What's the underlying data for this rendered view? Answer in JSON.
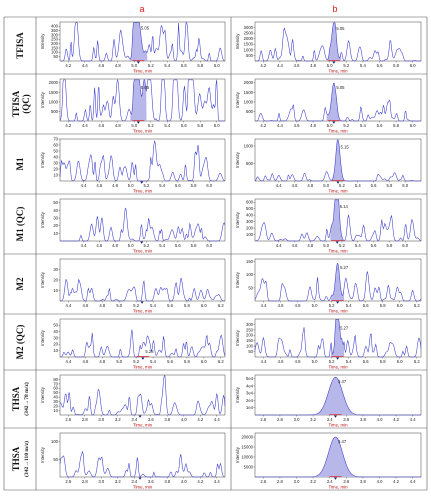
{
  "columns": [
    "a",
    "b"
  ],
  "rows": [
    {
      "name": "TFISA",
      "sub": ""
    },
    {
      "name": "TFISA",
      "sub": "(QC)"
    },
    {
      "name": "M1",
      "sub": ""
    },
    {
      "name": "M1 (QC)",
      "sub": ""
    },
    {
      "name": "M2",
      "sub": ""
    },
    {
      "name": "M2 (QC)",
      "sub": ""
    },
    {
      "name": "THSA",
      "sub": "(342→78 m/z)"
    },
    {
      "name": "THSA",
      "sub": "(342→110 m/z)"
    }
  ],
  "axis_label_y": "Intensity",
  "axis_label_x": "Time, min",
  "colors": {
    "trace": "#3a3acc",
    "fill": "#b7b7ea",
    "header": "#e01818",
    "baseline": "#e02020"
  },
  "chart_data": [
    {
      "row": 0,
      "col": "a",
      "type": "line",
      "xlim": [
        4.1,
        6.1
      ],
      "xticks": [
        "4.2",
        "4.4",
        "4.6",
        "4.8",
        "5.0",
        "5.2",
        "5.4",
        "5.6",
        "5.8",
        "6.0"
      ],
      "ylim": [
        0,
        450
      ],
      "yticks": [
        "50",
        "100",
        "150",
        "200",
        "250",
        "300",
        "350",
        "400"
      ],
      "peak_label": "5.05",
      "peak_x": 5.05,
      "peak_height": 430,
      "peak_width": 0.05,
      "noise": 70,
      "seed": 11
    },
    {
      "row": 0,
      "col": "b",
      "type": "line",
      "xlim": [
        4.1,
        6.1
      ],
      "xticks": [
        "4.2",
        "4.4",
        "4.6",
        "4.8",
        "5.0",
        "5.2",
        "5.4",
        "5.6",
        "5.8",
        "6.0"
      ],
      "ylim": [
        0,
        3500
      ],
      "yticks": [
        "500",
        "1000",
        "1500",
        "2000",
        "2500",
        "3000"
      ],
      "peak_label": "5.05",
      "peak_x": 5.05,
      "peak_height": 3300,
      "peak_width": 0.04,
      "noise": 35,
      "seed": 12
    },
    {
      "row": 1,
      "col": "a",
      "type": "line",
      "xlim": [
        4.1,
        6.1
      ],
      "xticks": [
        "4.2",
        "4.4",
        "4.6",
        "4.8",
        "5.0",
        "5.2",
        "5.4",
        "5.6",
        "5.8",
        "6.0"
      ],
      "ylim": [
        0,
        2200
      ],
      "yticks": [
        "500",
        "1000",
        "1500",
        "2000"
      ],
      "peak_label": "5.05",
      "peak_x": 5.05,
      "peak_height": 2000,
      "peak_width": 0.045,
      "noise": 130,
      "seed": 21
    },
    {
      "row": 1,
      "col": "b",
      "type": "line",
      "xlim": [
        4.1,
        6.1
      ],
      "xticks": [
        "4.2",
        "4.4",
        "4.6",
        "4.8",
        "5.0",
        "5.2",
        "5.4",
        "5.6",
        "5.8",
        "6.0"
      ],
      "ylim": [
        0,
        2200
      ],
      "yticks": [
        "500",
        "1000",
        "1500",
        "2000"
      ],
      "peak_label": "5.05",
      "peak_x": 5.05,
      "peak_height": 2000,
      "peak_width": 0.04,
      "noise": 25,
      "seed": 22
    },
    {
      "row": 2,
      "col": "a",
      "type": "line",
      "xlim": [
        4.1,
        6.2
      ],
      "xticks": [
        "4.4",
        "4.6",
        "4.8",
        "5.0",
        "5.2",
        "5.4",
        "5.6",
        "5.8",
        "6.0"
      ],
      "ylim": [
        0,
        70
      ],
      "yticks": [
        "10",
        "20",
        "30",
        "40",
        "50",
        "60",
        "70"
      ],
      "peak_label": "",
      "peak_x": 5.14,
      "peak_height": 0,
      "peak_width": 0.04,
      "noise": 55,
      "seed": 31
    },
    {
      "row": 2,
      "col": "b",
      "type": "line",
      "xlim": [
        4.1,
        6.2
      ],
      "xticks": [
        "4.4",
        "4.6",
        "4.8",
        "5.0",
        "5.2",
        "5.4",
        "5.6",
        "5.8",
        "6.0"
      ],
      "ylim": [
        0,
        1200
      ],
      "yticks": [
        "500",
        "1000"
      ],
      "peak_label": "5.15",
      "peak_x": 5.15,
      "peak_height": 1100,
      "peak_width": 0.04,
      "noise": 20,
      "seed": 32
    },
    {
      "row": 3,
      "col": "a",
      "type": "line",
      "xlim": [
        4.1,
        6.2
      ],
      "xticks": [
        "4.4",
        "4.6",
        "4.8",
        "5.0",
        "5.2",
        "5.4",
        "5.6",
        "5.8",
        "6.0"
      ],
      "ylim": [
        0,
        55
      ],
      "yticks": [
        "10",
        "20",
        "30",
        "40",
        "50"
      ],
      "peak_label": "",
      "peak_x": 5.14,
      "peak_height": 0,
      "peak_width": 0.04,
      "noise": 45,
      "seed": 41
    },
    {
      "row": 3,
      "col": "b",
      "type": "line",
      "xlim": [
        4.1,
        6.2
      ],
      "xticks": [
        "4.4",
        "4.6",
        "4.8",
        "5.0",
        "5.2",
        "5.4",
        "5.6",
        "5.8",
        "6.0"
      ],
      "ylim": [
        0,
        650
      ],
      "yticks": [
        "100",
        "200",
        "300",
        "400",
        "500",
        "600"
      ],
      "peak_label": "5.14",
      "peak_x": 5.14,
      "peak_height": 600,
      "peak_width": 0.04,
      "noise": 40,
      "seed": 42
    },
    {
      "row": 4,
      "col": "a",
      "type": "line",
      "xlim": [
        4.3,
        6.25
      ],
      "xticks": [
        "4.4",
        "4.6",
        "4.8",
        "5.0",
        "5.2",
        "5.4",
        "5.6",
        "5.8",
        "6.0",
        "6.2"
      ],
      "ylim": [
        0,
        40
      ],
      "yticks": [
        "10",
        "20",
        "30"
      ],
      "peak_label": "",
      "peak_x": 5.27,
      "peak_height": 0,
      "peak_width": 0.04,
      "noise": 32,
      "seed": 51
    },
    {
      "row": 4,
      "col": "b",
      "type": "line",
      "xlim": [
        4.3,
        6.25
      ],
      "xticks": [
        "4.4",
        "4.6",
        "4.8",
        "5.0",
        "5.2",
        "5.4",
        "5.6",
        "5.8",
        "6.0",
        "6.2"
      ],
      "ylim": [
        0,
        160
      ],
      "yticks": [
        "50",
        "100",
        "150"
      ],
      "peak_label": "5.27",
      "peak_x": 5.27,
      "peak_height": 145,
      "peak_width": 0.035,
      "noise": 35,
      "seed": 52
    },
    {
      "row": 5,
      "col": "a",
      "type": "line",
      "xlim": [
        4.3,
        6.25
      ],
      "xticks": [
        "4.4",
        "4.6",
        "4.8",
        "5.0",
        "5.2",
        "5.4",
        "5.6",
        "5.8",
        "6.0",
        "6.2"
      ],
      "ylim": [
        0,
        60
      ],
      "yticks": [
        "10",
        "20",
        "30",
        "40",
        "50"
      ],
      "peak_label": "5.28",
      "peak_x": 5.28,
      "peak_height": 0,
      "peak_width": 0.04,
      "noise": 45,
      "seed": 61
    },
    {
      "row": 5,
      "col": "b",
      "type": "line",
      "xlim": [
        4.3,
        6.25
      ],
      "xticks": [
        "4.4",
        "4.6",
        "4.8",
        "5.0",
        "5.2",
        "5.4",
        "5.6",
        "5.8",
        "6.0",
        "6.2"
      ],
      "ylim": [
        0,
        350
      ],
      "yticks": [
        "50",
        "100",
        "150",
        "200",
        "250",
        "300"
      ],
      "peak_label": "5.27",
      "peak_x": 5.27,
      "peak_height": 310,
      "peak_width": 0.035,
      "noise": 45,
      "seed": 62
    },
    {
      "row": 6,
      "col": "a",
      "type": "line",
      "xlim": [
        2.5,
        4.5
      ],
      "xticks": [
        "2.6",
        "2.8",
        "3.0",
        "3.2",
        "3.4",
        "3.6",
        "3.8",
        "4.0",
        "4.2",
        "4.4"
      ],
      "ylim": [
        0,
        90
      ],
      "yticks": [
        "10",
        "20",
        "30",
        "40",
        "50",
        "60",
        "70",
        "80"
      ],
      "peak_label": "",
      "peak_x": 3.47,
      "peak_height": 0,
      "peak_width": 0.1,
      "noise": 55,
      "seed": 71
    },
    {
      "row": 6,
      "col": "b",
      "type": "line",
      "xlim": [
        2.5,
        4.5
      ],
      "xticks": [
        "2.6",
        "2.8",
        "3.0",
        "3.2",
        "3.4",
        "3.6",
        "3.8",
        "4.0",
        "4.2",
        "4.4"
      ],
      "ylim": [
        0,
        55000
      ],
      "yticks": [
        "1e4",
        "2e4",
        "3e4",
        "4e4",
        "5e4"
      ],
      "peak_label": "3.47",
      "peak_x": 3.47,
      "peak_height": 52000,
      "peak_width": 0.12,
      "noise": 1,
      "seed": 72
    },
    {
      "row": 7,
      "col": "a",
      "type": "line",
      "xlim": [
        2.5,
        4.5
      ],
      "xticks": [
        "2.6",
        "2.8",
        "3.0",
        "3.2",
        "3.4",
        "3.6",
        "3.8",
        "4.0",
        "4.2",
        "4.4"
      ],
      "ylim": [
        0,
        125
      ],
      "yticks": [
        "50",
        "100"
      ],
      "peak_label": "",
      "peak_x": 3.47,
      "peak_height": 0,
      "peak_width": 0.1,
      "noise": 30,
      "seed": 81
    },
    {
      "row": 7,
      "col": "b",
      "type": "line",
      "xlim": [
        2.5,
        4.5
      ],
      "xticks": [
        "2.6",
        "2.8",
        "3.0",
        "3.2",
        "3.4",
        "3.6",
        "3.8",
        "4.0",
        "4.2",
        "4.4"
      ],
      "ylim": [
        0,
        22000
      ],
      "yticks": [
        "5000",
        "10000",
        "15000",
        "20000"
      ],
      "peak_label": "3.47",
      "peak_x": 3.47,
      "peak_height": 20000,
      "peak_width": 0.12,
      "noise": 1,
      "seed": 82
    }
  ]
}
